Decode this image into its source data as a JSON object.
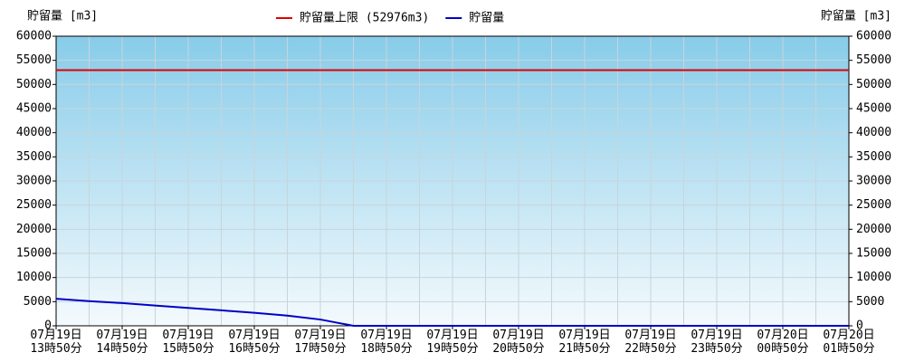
{
  "chart_data": {
    "type": "line",
    "y_label": "貯留量 [m3]",
    "y2_label": "貯留量 [m3]",
    "categories": [
      "07月19日\n13時50分",
      null,
      "07月19日\n14時50分",
      null,
      "07月19日\n15時50分",
      null,
      "07月19日\n16時50分",
      null,
      "07月19日\n17時50分",
      null,
      "07月19日\n18時50分",
      null,
      "07月19日\n19時50分",
      null,
      "07月19日\n20時50分",
      null,
      "07月19日\n21時50分",
      null,
      "07月19日\n22時50分",
      null,
      "07月19日\n23時50分",
      null,
      "07月20日\n00時50分",
      null,
      "07月20日\n01時50分"
    ],
    "series": [
      {
        "name": "貯留量上限 (52976m3)",
        "color": "#e00000",
        "values": [
          52976,
          52976,
          52976,
          52976,
          52976,
          52976,
          52976,
          52976,
          52976,
          52976,
          52976,
          52976,
          52976,
          52976,
          52976,
          52976,
          52976,
          52976,
          52976,
          52976,
          52976,
          52976,
          52976,
          52976,
          52976
        ]
      },
      {
        "name": "貯留量",
        "color": "#0000c8",
        "values": [
          5600,
          5100,
          4700,
          4200,
          3700,
          3200,
          2700,
          2100,
          1300,
          0,
          0,
          0,
          0,
          0,
          0,
          0,
          0,
          0,
          0,
          0,
          0,
          0,
          0,
          0,
          0
        ]
      }
    ],
    "ylim": [
      0,
      60000
    ],
    "yticks": [
      0,
      5000,
      10000,
      15000,
      20000,
      25000,
      30000,
      35000,
      40000,
      45000,
      50000,
      55000,
      60000
    ],
    "y2lim": [
      0,
      60000
    ],
    "y2ticks": [
      0,
      5000,
      10000,
      15000,
      20000,
      25000,
      30000,
      35000,
      40000,
      45000,
      50000,
      55000,
      60000
    ],
    "grid": true,
    "legend": "top"
  }
}
